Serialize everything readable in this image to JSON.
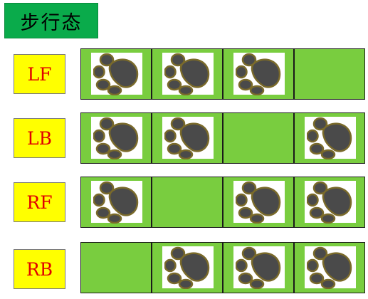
{
  "title": "步行态",
  "legs": [
    {
      "label": "LF",
      "steps": [
        true,
        true,
        true,
        false
      ]
    },
    {
      "label": "LB",
      "steps": [
        true,
        true,
        false,
        true
      ]
    },
    {
      "label": "RF",
      "steps": [
        true,
        false,
        true,
        true
      ]
    },
    {
      "label": "RB",
      "steps": [
        false,
        true,
        true,
        true
      ]
    }
  ],
  "icons": {
    "step": "paw-print-icon"
  },
  "colors": {
    "title_bg": "#0aab4b",
    "label_bg": "#ffff00",
    "label_text": "#e00000",
    "cell_bg": "#79cd3f",
    "paw_fill": "#4a4a4a",
    "paw_outline": "#7a6a2a"
  }
}
